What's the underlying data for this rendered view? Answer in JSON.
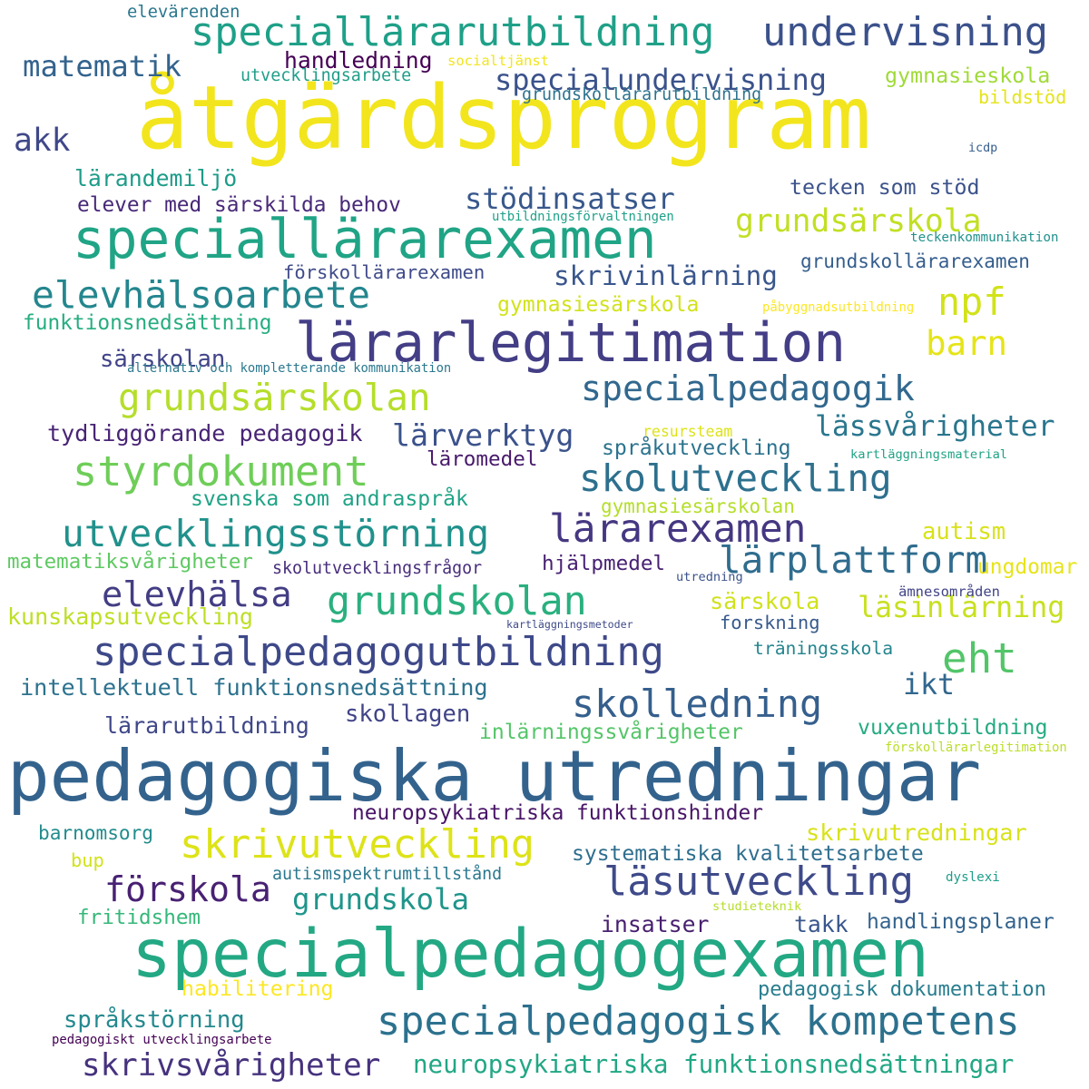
{
  "words": [
    {
      "text": "åtgärdsprogram",
      "color": "#f2e51d"
    },
    {
      "text": "pedagogiska utredningar",
      "color": "#33638d"
    },
    {
      "text": "specialpedagogexamen",
      "color": "#23a884"
    },
    {
      "text": "speciallärarexamen",
      "color": "#20a486"
    },
    {
      "text": "lärarlegitimation",
      "color": "#433e85"
    },
    {
      "text": "speciallärarutbildning",
      "color": "#1fa088"
    },
    {
      "text": "undervisning",
      "color": "#3b518b"
    },
    {
      "text": "specialpedagogisk kompetens",
      "color": "#2c718e"
    },
    {
      "text": "specialpedagogutbildning",
      "color": "#3e4989"
    },
    {
      "text": "skolledning",
      "color": "#355f8d"
    },
    {
      "text": "skrivutveckling",
      "color": "#dde318"
    },
    {
      "text": "läsutveckling",
      "color": "#3e4a89"
    },
    {
      "text": "styrdokument",
      "color": "#6ece58"
    },
    {
      "text": "elevhälsoarbete",
      "color": "#24868e"
    },
    {
      "text": "grundsärskolan",
      "color": "#b5de2b"
    },
    {
      "text": "specialpedagogik",
      "color": "#31688e"
    },
    {
      "text": "utvecklingsstörning",
      "color": "#21918c"
    },
    {
      "text": "skolutveckling",
      "color": "#2d708e"
    },
    {
      "text": "lärarexamen",
      "color": "#453781"
    },
    {
      "text": "grundskolan",
      "color": "#2ab07f"
    },
    {
      "text": "förskola",
      "color": "#482173"
    },
    {
      "text": "skrivsvårigheter",
      "color": "#46327e"
    },
    {
      "text": "neuropsykiatriska funktionsnedsättningar",
      "color": "#22a785"
    },
    {
      "text": "specialundervisning",
      "color": "#3b528b"
    },
    {
      "text": "grundsärskola",
      "color": "#c2df23"
    },
    {
      "text": "elevhälsa",
      "color": "#433d84"
    },
    {
      "text": "lärplattform",
      "color": "#2f6c8e"
    },
    {
      "text": "matematik",
      "color": "#33638d"
    },
    {
      "text": "stödinsatser",
      "color": "#38588c"
    },
    {
      "text": "skrivinlärning",
      "color": "#39568c"
    },
    {
      "text": "npf",
      "color": "#d2e21b"
    },
    {
      "text": "eht",
      "color": "#52c569"
    },
    {
      "text": "lärverktyg",
      "color": "#3b528b"
    },
    {
      "text": "lässvårigheter",
      "color": "#2a768e"
    },
    {
      "text": "grundskola",
      "color": "#1f958b"
    },
    {
      "text": "autism",
      "color": "#d8e219"
    },
    {
      "text": "läsinlärning",
      "color": "#c8e020"
    },
    {
      "text": "akk",
      "color": "#3f4889"
    },
    {
      "text": "barn",
      "color": "#e5e419"
    },
    {
      "text": "ikt",
      "color": "#31678e"
    },
    {
      "text": "skrivutredningar",
      "color": "#d8e219"
    },
    {
      "text": "handledning",
      "color": "#440154"
    },
    {
      "text": "intellektuell funktionsnedsättning",
      "color": "#2c728e"
    },
    {
      "text": "neuropsykiatriska funktionshinder",
      "color": "#481467"
    },
    {
      "text": "tecken som stöd",
      "color": "#3b528b"
    },
    {
      "text": "tydliggörande pedagogik",
      "color": "#482475"
    },
    {
      "text": "grundskollärarexamen",
      "color": "#355e8d"
    },
    {
      "text": "systematiska kvalitetsarbete",
      "color": "#2e6e8e"
    },
    {
      "text": "pedagogisk dokumentation",
      "color": "#287d8e"
    },
    {
      "text": "handlingsplaner",
      "color": "#33638d"
    },
    {
      "text": "insatser",
      "color": "#481f70"
    },
    {
      "text": "takk",
      "color": "#39568c"
    },
    {
      "text": "forskning",
      "color": "#375a8c"
    },
    {
      "text": "kunskapsutveckling",
      "color": "#bddf26"
    },
    {
      "text": "lärarutbildning",
      "color": "#3f4788"
    },
    {
      "text": "vuxenutbildning",
      "color": "#25ab82"
    },
    {
      "text": "elever med särskilda behov",
      "color": "#482878"
    },
    {
      "text": "språkstörning",
      "color": "#23898e"
    },
    {
      "text": "inlärningssvårigheter",
      "color": "#54c568"
    },
    {
      "text": "hjälpmedel",
      "color": "#482173"
    },
    {
      "text": "skollagen",
      "color": "#414487"
    },
    {
      "text": "språkutveckling",
      "color": "#2c738e"
    },
    {
      "text": "svenska som andraspråk",
      "color": "#20a386"
    },
    {
      "text": "gymnasieskola",
      "color": "#a0da39"
    },
    {
      "text": "lärandemiljö",
      "color": "#1e9c89"
    },
    {
      "text": "funktionsnedsättning",
      "color": "#26ad81"
    },
    {
      "text": "särskolan",
      "color": "#414487"
    },
    {
      "text": "gymnasiesärskola",
      "color": "#d2e21b"
    },
    {
      "text": "habilitering",
      "color": "#fde725"
    },
    {
      "text": "fritidshem",
      "color": "#35b779"
    },
    {
      "text": "särskola",
      "color": "#d0e11c"
    },
    {
      "text": "ungdomar",
      "color": "#e7e419"
    },
    {
      "text": "träningsskola",
      "color": "#25858e"
    },
    {
      "text": "förskollärarexamen",
      "color": "#3e4a89"
    },
    {
      "text": "utvecklingsarbete",
      "color": "#1f9e89"
    },
    {
      "text": "grundskollärarutbildning",
      "color": "#2c728e"
    },
    {
      "text": "matematiksvårigheter",
      "color": "#5ec962"
    },
    {
      "text": "skolutvecklingsfrågor",
      "color": "#472d7b"
    },
    {
      "text": "läromedel",
      "color": "#481a6c"
    },
    {
      "text": "gymnasiesärskolan",
      "color": "#b5de2b"
    },
    {
      "text": "barnomsorg",
      "color": "#228c8d"
    },
    {
      "text": "bup",
      "color": "#d2e21b"
    },
    {
      "text": "autismspektrumtillstånd",
      "color": "#2a788e"
    },
    {
      "text": "elevärenden",
      "color": "#2a778e"
    },
    {
      "text": "bildstöd",
      "color": "#e5e419"
    },
    {
      "text": "socialtjänst",
      "color": "#f1e51d"
    },
    {
      "text": "icdp",
      "color": "#355e8d"
    },
    {
      "text": "utbildningsförvaltningen",
      "color": "#1fa188"
    },
    {
      "text": "teckenkommunikation",
      "color": "#21918c"
    },
    {
      "text": "påbyggnadsutbildning",
      "color": "#fde725"
    },
    {
      "text": "alternativ och kompletterande kommunikation",
      "color": "#2a788e"
    },
    {
      "text": "resursteam",
      "color": "#dde318"
    },
    {
      "text": "kartläggningsmaterial",
      "color": "#20a386"
    },
    {
      "text": "utredning",
      "color": "#3b528b"
    },
    {
      "text": "ämnesområden",
      "color": "#414487"
    },
    {
      "text": "kartläggningsmetoder",
      "color": "#3e4a89"
    },
    {
      "text": "förskollärarlegitimation",
      "color": "#bade28"
    },
    {
      "text": "dyslexi",
      "color": "#1f9e89"
    },
    {
      "text": "studieteknik",
      "color": "#b5de2b"
    },
    {
      "text": "pedagogiskt utvecklingsarbete",
      "color": "#440154"
    }
  ]
}
